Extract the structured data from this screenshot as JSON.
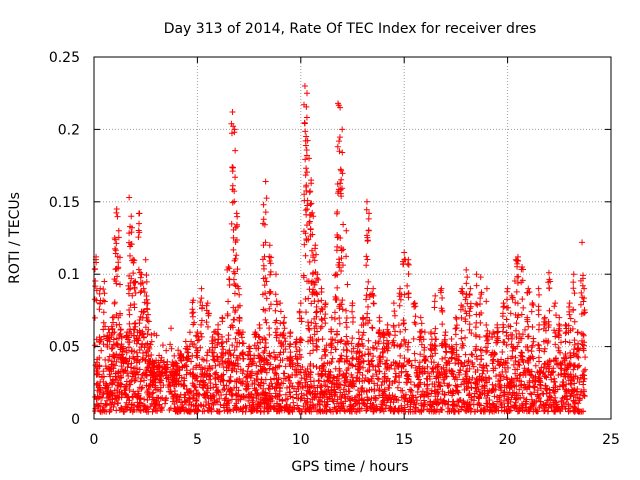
{
  "chart_data": {
    "type": "scatter",
    "title": "Day 313 of 2014, Rate Of TEC Index for receiver dres",
    "xlabel": "GPS time / hours",
    "ylabel": "ROTI / TECUs",
    "xlim": [
      0,
      25
    ],
    "ylim": [
      0,
      0.25
    ],
    "xticks": [
      0,
      5,
      10,
      15,
      20,
      25
    ],
    "yticks": [
      0,
      0.05,
      0.1,
      0.15,
      0.2,
      0.25
    ],
    "xtick_labels": [
      "0",
      "5",
      "10",
      "15",
      "20",
      "25"
    ],
    "ytick_labels": [
      "0",
      "0.05",
      "0.1",
      "0.15",
      "0.2",
      "0.25"
    ],
    "grid": true,
    "marker": "plus",
    "color": "#ff0000",
    "series": [
      {
        "x": [
          0.1,
          0.3,
          0.5,
          0.7,
          0.9,
          1.0,
          1.1,
          1.2,
          1.3,
          1.4,
          1.5,
          1.6,
          1.7,
          1.8,
          1.9,
          2.0,
          2.1,
          2.2,
          2.3,
          2.4,
          2.5,
          2.6,
          2.7,
          2.8,
          2.9,
          3.0,
          3.2,
          3.5,
          3.8,
          4.0,
          4.2,
          4.5,
          4.8,
          5.0,
          5.2,
          5.5,
          5.8,
          6.0,
          6.2,
          6.5,
          6.7,
          6.8,
          6.9,
          7.0,
          7.2,
          7.5,
          7.8,
          8.0,
          8.2,
          8.3,
          8.5,
          8.8,
          9.0,
          9.2,
          9.5,
          9.8,
          10.0,
          10.2,
          10.3,
          10.4,
          10.5,
          10.6,
          10.7,
          10.8,
          11.0,
          11.2,
          11.5,
          11.7,
          11.8,
          11.9,
          12.0,
          12.2,
          12.5,
          12.8,
          13.0,
          13.2,
          13.3,
          13.5,
          13.8,
          14.0,
          14.2,
          14.5,
          14.8,
          15.0,
          15.2,
          15.5,
          15.8,
          16.0,
          16.3,
          16.5,
          16.8,
          17.0,
          17.3,
          17.5,
          17.8,
          18.0,
          18.2,
          18.5,
          18.7,
          19.0,
          19.3,
          19.5,
          19.8,
          20.0,
          20.2,
          20.4,
          20.5,
          20.7,
          21.0,
          21.2,
          21.5,
          21.8,
          22.0,
          22.3,
          22.5,
          22.8,
          23.0,
          23.2,
          23.4,
          23.6,
          23.7
        ],
        "y": [
          0.112,
          0.09,
          0.095,
          0.062,
          0.07,
          0.125,
          0.145,
          0.13,
          0.062,
          0.05,
          0.04,
          0.06,
          0.153,
          0.14,
          0.11,
          0.095,
          0.06,
          0.142,
          0.1,
          0.09,
          0.11,
          0.08,
          0.04,
          0.03,
          0.025,
          0.02,
          0.025,
          0.028,
          0.025,
          0.03,
          0.045,
          0.05,
          0.082,
          0.06,
          0.09,
          0.08,
          0.06,
          0.065,
          0.07,
          0.105,
          0.212,
          0.2,
          0.142,
          0.09,
          0.06,
          0.05,
          0.06,
          0.065,
          0.148,
          0.164,
          0.12,
          0.1,
          0.08,
          0.07,
          0.06,
          0.055,
          0.08,
          0.23,
          0.225,
          0.18,
          0.165,
          0.14,
          0.12,
          0.1,
          0.09,
          0.08,
          0.07,
          0.1,
          0.218,
          0.215,
          0.2,
          0.13,
          0.08,
          0.06,
          0.07,
          0.15,
          0.142,
          0.09,
          0.07,
          0.06,
          0.065,
          0.08,
          0.09,
          0.115,
          0.11,
          0.08,
          0.07,
          0.06,
          0.06,
          0.085,
          0.09,
          0.06,
          0.05,
          0.07,
          0.09,
          0.103,
          0.09,
          0.1,
          0.098,
          0.09,
          0.06,
          0.065,
          0.08,
          0.09,
          0.085,
          0.11,
          0.112,
          0.105,
          0.09,
          0.08,
          0.09,
          0.07,
          0.101,
          0.08,
          0.07,
          0.065,
          0.08,
          0.1,
          0.06,
          0.122,
          0.09
        ]
      }
    ],
    "background_band": {
      "description_free": true,
      "min": 0.005,
      "max": 0.04
    }
  }
}
